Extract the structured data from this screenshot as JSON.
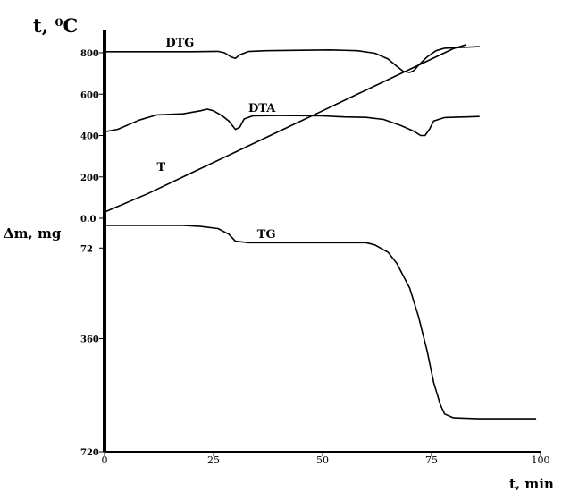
{
  "chart_data": {
    "type": "line",
    "ylabel_top": "t, ⁰C",
    "ylabel_mass": "Δm, mg",
    "xlabel": "t, min",
    "xlim": [
      0,
      100
    ],
    "x_ticks": [
      "0",
      "25",
      "50",
      "75",
      "100"
    ],
    "temp_ticks": [
      {
        "label": "800",
        "value": 800
      },
      {
        "label": "600",
        "value": 600
      },
      {
        "label": "400",
        "value": 400
      },
      {
        "label": "200",
        "value": 200
      },
      {
        "label": "0.0",
        "value": 0
      }
    ],
    "mass_ticks": [
      {
        "label": "72",
        "value": 72
      },
      {
        "label": "360",
        "value": 360
      },
      {
        "label": "720",
        "value": 720
      }
    ],
    "temp_ylim": [
      0,
      800
    ],
    "mass_ylim": [
      0,
      720
    ],
    "series": [
      {
        "name": "DTG",
        "label_at": [
          14,
          830
        ],
        "points": [
          [
            0,
            805
          ],
          [
            10,
            805
          ],
          [
            20,
            805
          ],
          [
            26,
            807
          ],
          [
            27.5,
            800
          ],
          [
            29,
            780
          ],
          [
            30,
            773
          ],
          [
            31,
            790
          ],
          [
            33,
            806
          ],
          [
            37,
            810
          ],
          [
            45,
            812
          ],
          [
            52,
            814
          ],
          [
            58,
            810
          ],
          [
            62,
            798
          ],
          [
            65,
            770
          ],
          [
            67,
            735
          ],
          [
            68.5,
            710
          ],
          [
            70,
            705
          ],
          [
            71,
            715
          ],
          [
            72,
            740
          ],
          [
            74,
            780
          ],
          [
            76,
            810
          ],
          [
            78,
            822
          ],
          [
            82,
            826
          ],
          [
            86,
            830
          ]
        ]
      },
      {
        "name": "DTA",
        "label_at": [
          33,
          515
        ],
        "points": [
          [
            0,
            418
          ],
          [
            3,
            430
          ],
          [
            8,
            475
          ],
          [
            12,
            500
          ],
          [
            18,
            505
          ],
          [
            22,
            520
          ],
          [
            23.5,
            528
          ],
          [
            25,
            520
          ],
          [
            27,
            495
          ],
          [
            28.5,
            470
          ],
          [
            30,
            430
          ],
          [
            31,
            440
          ],
          [
            32,
            480
          ],
          [
            34,
            495
          ],
          [
            40,
            497
          ],
          [
            50,
            495
          ],
          [
            55,
            490
          ],
          [
            60,
            488
          ],
          [
            64,
            478
          ],
          [
            68,
            448
          ],
          [
            71,
            420
          ],
          [
            72.5,
            400
          ],
          [
            73.5,
            400
          ],
          [
            74.5,
            430
          ],
          [
            75.5,
            470
          ],
          [
            78,
            487
          ],
          [
            83,
            490
          ],
          [
            86,
            492
          ]
        ]
      },
      {
        "name": "T",
        "label_at": [
          12,
          230
        ],
        "points": [
          [
            0,
            30
          ],
          [
            10,
            120
          ],
          [
            20,
            220
          ],
          [
            30,
            320
          ],
          [
            40,
            420
          ],
          [
            50,
            520
          ],
          [
            60,
            620
          ],
          [
            70,
            720
          ],
          [
            80,
            820
          ],
          [
            83,
            840
          ]
        ]
      },
      {
        "name": "TG",
        "label_at": [
          35,
          40
        ],
        "points": [
          [
            0,
            0
          ],
          [
            18,
            0
          ],
          [
            22,
            3
          ],
          [
            26,
            10
          ],
          [
            28.5,
            28
          ],
          [
            30,
            50
          ],
          [
            33,
            55
          ],
          [
            45,
            55
          ],
          [
            55,
            55
          ],
          [
            60,
            55
          ],
          [
            62,
            62
          ],
          [
            65,
            85
          ],
          [
            67,
            120
          ],
          [
            70,
            200
          ],
          [
            72,
            290
          ],
          [
            74,
            400
          ],
          [
            75.5,
            500
          ],
          [
            77,
            570
          ],
          [
            78,
            600
          ],
          [
            80,
            612
          ],
          [
            86,
            615
          ],
          [
            96,
            615
          ],
          [
            99,
            615
          ]
        ]
      }
    ]
  }
}
